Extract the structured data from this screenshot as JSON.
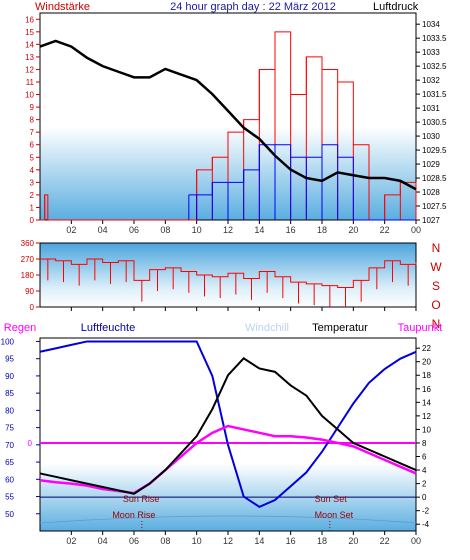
{
  "header": {
    "left_label": "Windstärke",
    "title": "24 hour graph day : 22 März 2012",
    "right_label": "Luftdruck"
  },
  "colors": {
    "wind": "#ff0000",
    "gust": "#0000ff",
    "pressure": "#000000",
    "direction": "#ff0000",
    "humidity": "#0000dd",
    "temperature": "#000000",
    "dewpoint": "#ff00ff",
    "windchill": "#bcd3ee",
    "regen": "#ff00ff",
    "luftfeuchte": "#0000aa",
    "sun_line": "#000066",
    "sky_top": "#ffffff",
    "sky_bottom": "#5aaee0"
  },
  "x_ticks": [
    "02",
    "04",
    "06",
    "08",
    "10",
    "12",
    "14",
    "16",
    "18",
    "20",
    "22",
    "00"
  ],
  "chart_data": [
    {
      "type": "line",
      "name": "wind-pressure",
      "title": "24 hour graph day : 22 März 2012",
      "ylabel_left": "Windstärke",
      "ylabel_right": "Luftdruck",
      "ylim_left": [
        0,
        16.5
      ],
      "ylim_right": [
        1027,
        1034.4
      ],
      "y_ticks_left": [
        "0",
        "1",
        "2",
        "3",
        "4",
        "5",
        "6",
        "7",
        "8",
        "9",
        "10",
        "11",
        "12",
        "13",
        "14",
        "15",
        "16"
      ],
      "y_ticks_right": [
        "1027",
        "1027.5",
        "1028",
        "1028.5",
        "1029",
        "1029.5",
        "1030",
        "1030.5",
        "1031",
        "1031.5",
        "1032",
        "1032.5",
        "1033",
        "1033.5",
        "1034"
      ],
      "pressure": {
        "x": [
          0,
          1,
          2,
          3,
          4,
          5,
          6,
          7,
          8,
          9,
          10,
          11,
          12,
          13,
          14,
          15,
          16,
          17,
          18,
          19,
          20,
          21,
          22,
          23,
          24
        ],
        "y": [
          1033.2,
          1033.4,
          1033.2,
          1032.8,
          1032.5,
          1032.3,
          1032.1,
          1032.1,
          1032.4,
          1032.2,
          1032.0,
          1031.5,
          1030.9,
          1030.3,
          1029.9,
          1029.3,
          1028.8,
          1028.5,
          1028.4,
          1028.7,
          1028.6,
          1028.5,
          1028.5,
          1028.4,
          1028.1
        ]
      },
      "wind_speed": {
        "x": [
          0,
          0.3,
          0.5,
          9.5,
          10,
          11,
          12,
          13,
          14,
          15,
          16,
          17,
          18,
          19,
          20,
          21,
          22,
          23,
          24
        ],
        "y": [
          0,
          2,
          0,
          0,
          4,
          5,
          7,
          8,
          12,
          15,
          10,
          13,
          12,
          11,
          6,
          0,
          2,
          3,
          0
        ]
      },
      "wind_gust": {
        "x": [
          9.5,
          10,
          11,
          12,
          13,
          14,
          15,
          16,
          17,
          18,
          19,
          20
        ],
        "y": [
          2,
          2,
          3,
          3,
          4,
          6,
          6,
          5,
          5,
          6,
          5,
          0
        ]
      }
    },
    {
      "type": "line",
      "name": "wind-direction",
      "ylim": [
        0,
        360
      ],
      "y_ticks": [
        "0",
        "90",
        "180",
        "270",
        "360"
      ],
      "right_labels": [
        "N",
        "W",
        "S",
        "O",
        "N"
      ],
      "x": [
        0,
        1,
        2,
        3,
        4,
        5,
        6,
        7,
        8,
        9,
        10,
        11,
        12,
        13,
        14,
        15,
        16,
        17,
        18,
        19,
        20,
        21,
        22,
        23,
        24
      ],
      "y": [
        270,
        260,
        240,
        270,
        250,
        260,
        150,
        210,
        220,
        200,
        180,
        170,
        190,
        160,
        200,
        170,
        140,
        130,
        120,
        110,
        150,
        220,
        260,
        240,
        250
      ]
    },
    {
      "type": "line",
      "name": "temperature-humidity",
      "legend": [
        "Regen",
        "Luftfeuchte",
        "Windchill",
        "Temperatur",
        "Taupunkt"
      ],
      "ylim_left": [
        45,
        101
      ],
      "ylim_right": [
        -5,
        23.5
      ],
      "y_ticks_left": [
        "50",
        "55",
        "60",
        "65",
        "70",
        "75",
        "80",
        "85",
        "90",
        "95",
        "100"
      ],
      "y_ticks_right": [
        "-4",
        "-2",
        "0",
        "2",
        "4",
        "6",
        "8",
        "10",
        "12",
        "14",
        "16",
        "18",
        "20",
        "22"
      ],
      "rain_marker": "0",
      "annotations": {
        "sun_rise": "Sun Rise",
        "sun_set": "Sun Set",
        "moon_rise": "Moon Rise",
        "moon_set": "Moon Set"
      },
      "humidity": {
        "x": [
          0,
          1,
          2,
          3,
          4,
          5,
          6,
          7,
          8,
          9,
          10,
          11,
          12,
          13,
          14,
          15,
          16,
          17,
          18,
          19,
          20,
          21,
          22,
          23,
          24
        ],
        "y": [
          97,
          98,
          99,
          100,
          100,
          100,
          100,
          100,
          100,
          100,
          100,
          90,
          70,
          55,
          52,
          54,
          58,
          62,
          68,
          75,
          82,
          88,
          92,
          95,
          97
        ]
      },
      "temperature": {
        "x": [
          0,
          1,
          2,
          3,
          4,
          5,
          6,
          7,
          8,
          9,
          10,
          11,
          12,
          13,
          14,
          15,
          16,
          17,
          18,
          19,
          20,
          21,
          22,
          23,
          24
        ],
        "y": [
          3.5,
          3.0,
          2.5,
          2.0,
          1.5,
          1.0,
          0.5,
          2.0,
          4.0,
          6.5,
          9.0,
          13.0,
          18.0,
          20.5,
          19.0,
          18.5,
          16.5,
          15.0,
          12.0,
          10.0,
          8.0,
          7.0,
          6.0,
          5.0,
          4.0
        ]
      },
      "dewpoint": {
        "x": [
          0,
          1,
          2,
          3,
          4,
          5,
          6,
          7,
          8,
          9,
          10,
          11,
          12,
          13,
          14,
          15,
          16,
          17,
          18,
          19,
          20,
          21,
          22,
          23,
          24
        ],
        "y": [
          2.5,
          2.2,
          2.0,
          1.7,
          1.2,
          0.9,
          0.6,
          2.0,
          4.0,
          6.0,
          8.0,
          9.5,
          10.5,
          10.0,
          9.5,
          9.0,
          9.0,
          8.8,
          8.5,
          8.0,
          7.5,
          6.5,
          5.5,
          4.5,
          3.5
        ]
      },
      "sun_rise_x": 6.2,
      "sun_set_x": 18.3,
      "moon_rise_x": 6.5,
      "moon_set_x": 18.5
    }
  ]
}
